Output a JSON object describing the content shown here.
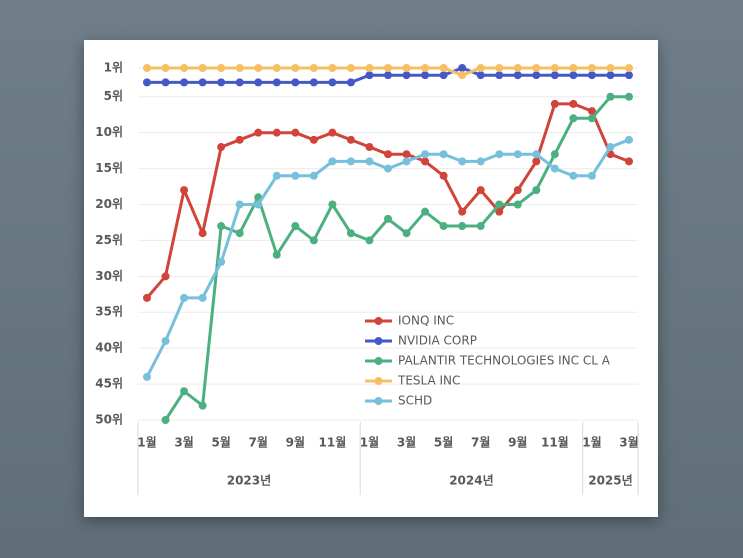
{
  "chart_data": {
    "type": "line",
    "groups": [
      {
        "label": "2023년",
        "months": [
          "1월",
          null,
          "3월",
          null,
          "5월",
          null,
          "7월",
          null,
          "9월",
          null,
          "11월",
          null
        ]
      },
      {
        "label": "2024년",
        "months": [
          "1월",
          null,
          "3월",
          null,
          "5월",
          null,
          "7월",
          null,
          "9월",
          null,
          "11월",
          null
        ]
      },
      {
        "label": "2025년",
        "months": [
          "1월",
          null,
          "3월"
        ]
      }
    ],
    "series": [
      {
        "name": "IONQ INC",
        "color": "#d0443a",
        "values": [
          33,
          30,
          18,
          24,
          12,
          11,
          10,
          10,
          10,
          11,
          10,
          11,
          12,
          13,
          13,
          14,
          16,
          21,
          18,
          21,
          18,
          14,
          6,
          6,
          7,
          13,
          14
        ]
      },
      {
        "name": "NVIDIA CORP",
        "color": "#4658c9",
        "values": [
          3,
          3,
          3,
          3,
          3,
          3,
          3,
          3,
          3,
          3,
          3,
          3,
          2,
          2,
          2,
          2,
          2,
          1,
          2,
          2,
          2,
          2,
          2,
          2,
          2,
          2,
          2
        ]
      },
      {
        "name": "PALANTIR TECHNOLOGIES INC CL A",
        "color": "#4caf80",
        "values": [
          null,
          50,
          46,
          48,
          23,
          24,
          19,
          27,
          23,
          25,
          20,
          24,
          25,
          22,
          24,
          21,
          23,
          23,
          23,
          20,
          20,
          18,
          13,
          8,
          8,
          5,
          5
        ]
      },
      {
        "name": "TESLA INC",
        "color": "#f5c063",
        "values": [
          1,
          1,
          1,
          1,
          1,
          1,
          1,
          1,
          1,
          1,
          1,
          1,
          1,
          1,
          1,
          1,
          1,
          2,
          1,
          1,
          1,
          1,
          1,
          1,
          1,
          1,
          1
        ]
      },
      {
        "name": "SCHD",
        "color": "#76c0dc",
        "values": [
          44,
          39,
          33,
          33,
          28,
          20,
          20,
          16,
          16,
          16,
          14,
          14,
          14,
          15,
          14,
          13,
          13,
          14,
          14,
          13,
          13,
          13,
          15,
          16,
          16,
          12,
          11
        ]
      }
    ],
    "ylim": [
      1,
      50
    ],
    "y_inverted": true,
    "yticks": [
      {
        "value": 1,
        "label": "1위"
      },
      {
        "value": 5,
        "label": "5위"
      },
      {
        "value": 10,
        "label": "10위"
      },
      {
        "value": 15,
        "label": "15위"
      },
      {
        "value": 20,
        "label": "20위"
      },
      {
        "value": 25,
        "label": "25위"
      },
      {
        "value": 30,
        "label": "30위"
      },
      {
        "value": 35,
        "label": "35위"
      },
      {
        "value": 40,
        "label": "40위"
      },
      {
        "value": 45,
        "label": "45위"
      },
      {
        "value": 50,
        "label": "50위"
      }
    ],
    "grid": true
  }
}
